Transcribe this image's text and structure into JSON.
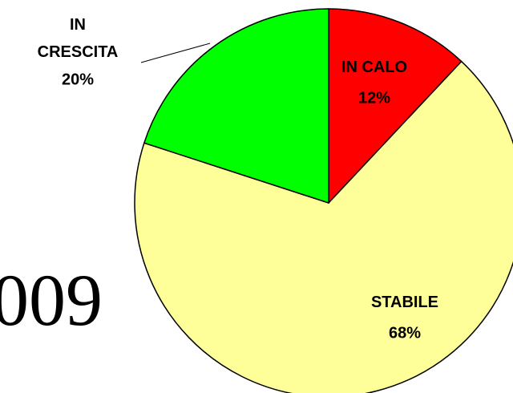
{
  "chart_data": {
    "type": "pie",
    "categories": [
      "IN CALO",
      "STABILE",
      "IN CRESCITA"
    ],
    "values": [
      12,
      68,
      20
    ],
    "value_labels": [
      "12%",
      "68%",
      "20%"
    ],
    "colors": [
      "#ff0000",
      "#ffff99",
      "#00ff00"
    ],
    "side_text": "009"
  }
}
